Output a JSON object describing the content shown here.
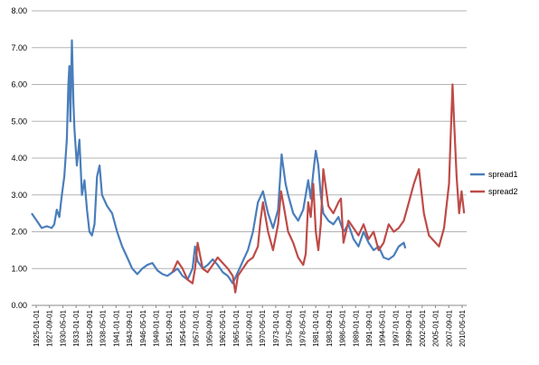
{
  "chart_data": {
    "type": "line",
    "title": "",
    "xlabel": "",
    "ylabel": "",
    "ylim": [
      0,
      8
    ],
    "yticks": [
      "0.00",
      "1.00",
      "2.00",
      "3.00",
      "4.00",
      "5.00",
      "6.00",
      "7.00",
      "8.00"
    ],
    "xticks": [
      "1925-01-01",
      "1927-09-01",
      "1930-05-01",
      "1933-01-01",
      "1935-09-01",
      "1938-05-01",
      "1941-01-01",
      "1943-09-01",
      "1946-05-01",
      "1949-01-01",
      "1951-09-01",
      "1954-05-01",
      "1957-01-01",
      "1959-09-01",
      "1962-05-01",
      "1965-01-01",
      "1967-09-01",
      "1970-05-01",
      "1973-01-01",
      "1975-09-01",
      "1978-05-01",
      "1981-01-01",
      "1983-09-01",
      "1986-05-01",
      "1989-01-01",
      "1991-09-01",
      "1994-05-01",
      "1997-01-01",
      "1999-09-01",
      "2002-05-01",
      "2005-01-01",
      "2007-09-01",
      "2010-05-01"
    ],
    "grid": true,
    "legend_position": "right",
    "colors": {
      "spread1": "#4a7ebb",
      "spread2": "#be4b48",
      "grid": "#b3b3b3"
    },
    "series": [
      {
        "name": "spread1",
        "x": [
          1925.0,
          1926.0,
          1927.0,
          1928.0,
          1929.0,
          1929.5,
          1930.0,
          1930.5,
          1931.0,
          1931.5,
          1932.0,
          1932.3,
          1932.5,
          1932.7,
          1933.0,
          1933.3,
          1933.5,
          1934.0,
          1934.5,
          1935.0,
          1935.5,
          1936.0,
          1936.5,
          1937.0,
          1937.5,
          1938.0,
          1938.5,
          1939.0,
          1940.0,
          1941.0,
          1942.0,
          1943.0,
          1944.0,
          1945.0,
          1946.0,
          1947.0,
          1948.0,
          1949.0,
          1950.0,
          1951.0,
          1952.0,
          1953.0,
          1954.0,
          1955.0,
          1956.0,
          1957.0,
          1957.5,
          1958.0,
          1959.0,
          1960.0,
          1961.0,
          1962.0,
          1963.0,
          1964.0,
          1965.0,
          1966.0,
          1967.0,
          1968.0,
          1969.0,
          1970.0,
          1971.0,
          1972.0,
          1973.0,
          1974.0,
          1974.7,
          1975.0,
          1975.5,
          1976.0,
          1977.0,
          1978.0,
          1979.0,
          1980.0,
          1980.5,
          1981.0,
          1981.5,
          1982.0,
          1982.5,
          1983.0,
          1984.0,
          1985.0,
          1986.0,
          1987.0,
          1988.0,
          1989.0,
          1990.0,
          1991.0,
          1992.0,
          1993.0,
          1994.0,
          1995.0,
          1996.0,
          1997.0,
          1998.0,
          1999.0,
          1999.3
        ],
        "values": [
          2.5,
          2.3,
          2.1,
          2.15,
          2.1,
          2.2,
          2.6,
          2.4,
          3.0,
          3.5,
          4.5,
          6.0,
          6.5,
          5.0,
          7.2,
          5.5,
          4.8,
          3.8,
          4.5,
          3.0,
          3.4,
          2.6,
          2.0,
          1.9,
          2.2,
          3.5,
          3.8,
          3.0,
          2.7,
          2.5,
          2.0,
          1.6,
          1.3,
          1.0,
          0.85,
          1.0,
          1.1,
          1.15,
          0.95,
          0.85,
          0.8,
          0.9,
          1.0,
          0.8,
          0.7,
          1.0,
          1.6,
          1.2,
          1.0,
          1.1,
          1.25,
          1.1,
          0.9,
          0.8,
          0.6,
          0.9,
          1.2,
          1.5,
          2.0,
          2.8,
          3.1,
          2.5,
          2.1,
          2.6,
          4.1,
          3.8,
          3.3,
          3.0,
          2.5,
          2.3,
          2.6,
          3.4,
          2.9,
          3.6,
          4.2,
          3.8,
          3.0,
          2.5,
          2.3,
          2.2,
          2.4,
          2.0,
          2.2,
          1.8,
          1.6,
          2.0,
          1.7,
          1.5,
          1.6,
          1.3,
          1.25,
          1.35,
          1.6,
          1.7,
          1.55
        ]
      },
      {
        "name": "spread2",
        "x": [
          1953.0,
          1954.0,
          1955.0,
          1956.0,
          1957.0,
          1957.5,
          1958.0,
          1959.0,
          1960.0,
          1961.0,
          1962.0,
          1963.0,
          1964.0,
          1965.0,
          1965.5,
          1966.0,
          1967.0,
          1968.0,
          1969.0,
          1970.0,
          1970.5,
          1971.0,
          1972.0,
          1973.0,
          1974.0,
          1974.6,
          1975.0,
          1976.0,
          1977.0,
          1978.0,
          1979.0,
          1979.5,
          1980.0,
          1980.5,
          1981.0,
          1981.5,
          1982.0,
          1982.5,
          1983.0,
          1984.0,
          1985.0,
          1986.0,
          1986.5,
          1987.0,
          1988.0,
          1989.0,
          1990.0,
          1991.0,
          1992.0,
          1993.0,
          1994.0,
          1995.0,
          1996.0,
          1997.0,
          1998.0,
          1999.0,
          2000.0,
          2001.0,
          2002.0,
          2003.0,
          2004.0,
          2005.0,
          2006.0,
          2007.0,
          2008.0,
          2008.3,
          2008.7,
          2009.0,
          2009.5,
          2010.0,
          2010.5,
          2011.0
        ],
        "values": [
          0.9,
          1.2,
          1.0,
          0.7,
          0.6,
          1.0,
          1.7,
          1.0,
          0.9,
          1.1,
          1.3,
          1.15,
          1.0,
          0.8,
          0.35,
          0.8,
          1.0,
          1.2,
          1.3,
          1.6,
          2.3,
          2.8,
          2.0,
          1.5,
          2.2,
          3.1,
          2.8,
          2.0,
          1.7,
          1.3,
          1.1,
          1.4,
          2.8,
          2.4,
          3.3,
          2.0,
          1.5,
          2.2,
          3.7,
          2.7,
          2.5,
          2.8,
          2.9,
          1.7,
          2.3,
          2.1,
          1.9,
          2.2,
          1.8,
          2.0,
          1.5,
          1.7,
          2.2,
          2.0,
          2.1,
          2.3,
          2.8,
          3.3,
          3.7,
          2.5,
          1.9,
          1.75,
          1.6,
          2.1,
          3.3,
          4.5,
          6.0,
          5.0,
          3.5,
          2.5,
          3.1,
          2.5
        ]
      }
    ]
  }
}
